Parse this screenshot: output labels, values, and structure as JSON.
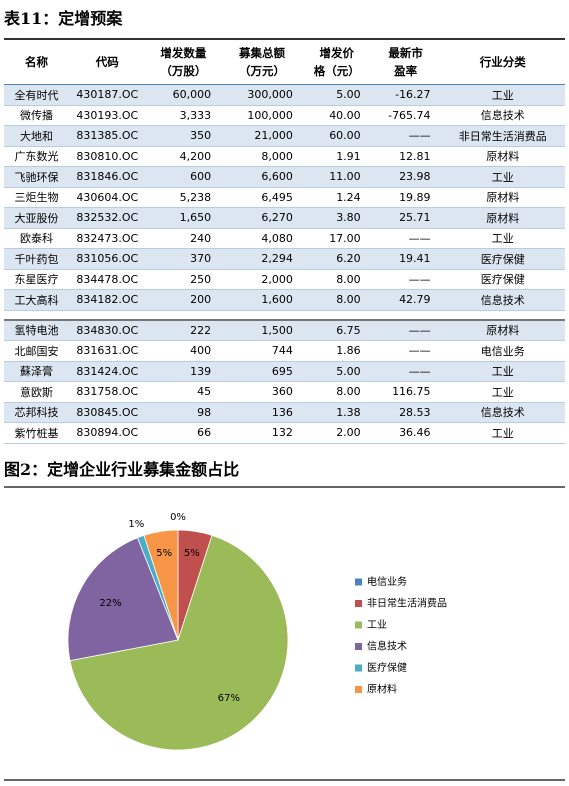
{
  "table": {
    "title": "表11：定增预案",
    "header": [
      [
        "名称"
      ],
      [
        "代码"
      ],
      [
        "增发数量",
        "（万股）"
      ],
      [
        "募集总额",
        "（万元）"
      ],
      [
        "增发价",
        "格（元）"
      ],
      [
        "最新市",
        "盈率"
      ],
      [
        "行业分类"
      ]
    ],
    "row_groups": [
      [
        [
          "全有时代",
          "430187.OC",
          "60,000",
          "300,000",
          "5.00",
          "-16.27",
          "工业"
        ],
        [
          "微传播",
          "430193.OC",
          "3,333",
          "100,000",
          "40.00",
          "-765.74",
          "信息技术"
        ],
        [
          "大地和",
          "831385.OC",
          "350",
          "21,000",
          "60.00",
          "——",
          "非日常生活消费品"
        ],
        [
          "广东数光",
          "830810.OC",
          "4,200",
          "8,000",
          "1.91",
          "12.81",
          "原材料"
        ],
        [
          "飞驰环保",
          "831846.OC",
          "600",
          "6,600",
          "11.00",
          "23.98",
          "工业"
        ],
        [
          "三炬生物",
          "430604.OC",
          "5,238",
          "6,495",
          "1.24",
          "19.89",
          "原材料"
        ],
        [
          "大亚股份",
          "832532.OC",
          "1,650",
          "6,270",
          "3.80",
          "25.71",
          "原材料"
        ],
        [
          "欧泰科",
          "832473.OC",
          "240",
          "4,080",
          "17.00",
          "——",
          "工业"
        ],
        [
          "千叶药包",
          "831056.OC",
          "370",
          "2,294",
          "6.20",
          "19.41",
          "医疗保健"
        ],
        [
          "东星医疗",
          "834478.OC",
          "250",
          "2,000",
          "8.00",
          "——",
          "医疗保健"
        ],
        [
          "工大高科",
          "834182.OC",
          "200",
          "1,600",
          "8.00",
          "42.79",
          "信息技术"
        ]
      ],
      [
        [
          "氢特电池",
          "834830.OC",
          "222",
          "1,500",
          "6.75",
          "——",
          "原材料"
        ],
        [
          "北邮国安",
          "831631.OC",
          "400",
          "744",
          "1.86",
          "——",
          "电信业务"
        ],
        [
          "蘇泽膏",
          "831424.OC",
          "139",
          "695",
          "5.00",
          "——",
          "工业"
        ],
        [
          "意欧斯",
          "831758.OC",
          "45",
          "360",
          "8.00",
          "116.75",
          "工业"
        ],
        [
          "芯邦科技",
          "830845.OC",
          "98",
          "136",
          "1.38",
          "28.53",
          "信息技术"
        ],
        [
          "紫竹桩基",
          "830894.OC",
          "66",
          "132",
          "2.00",
          "36.46",
          "工业"
        ]
      ]
    ]
  },
  "chart_data": {
    "type": "pie",
    "title": "图2：定增企业行业募集金额占比",
    "categories": [
      "电信业务",
      "非日常生活消费品",
      "工业",
      "信息技术",
      "医疗保健",
      "原材料"
    ],
    "values": [
      0,
      5,
      67,
      22,
      1,
      5
    ],
    "value_labels": [
      "0%",
      "5%",
      "67%",
      "22%",
      "1%",
      "5%"
    ],
    "colors": [
      "#4f81bd",
      "#c0504d",
      "#9bbb59",
      "#8064a2",
      "#4bacc6",
      "#f79646"
    ]
  }
}
